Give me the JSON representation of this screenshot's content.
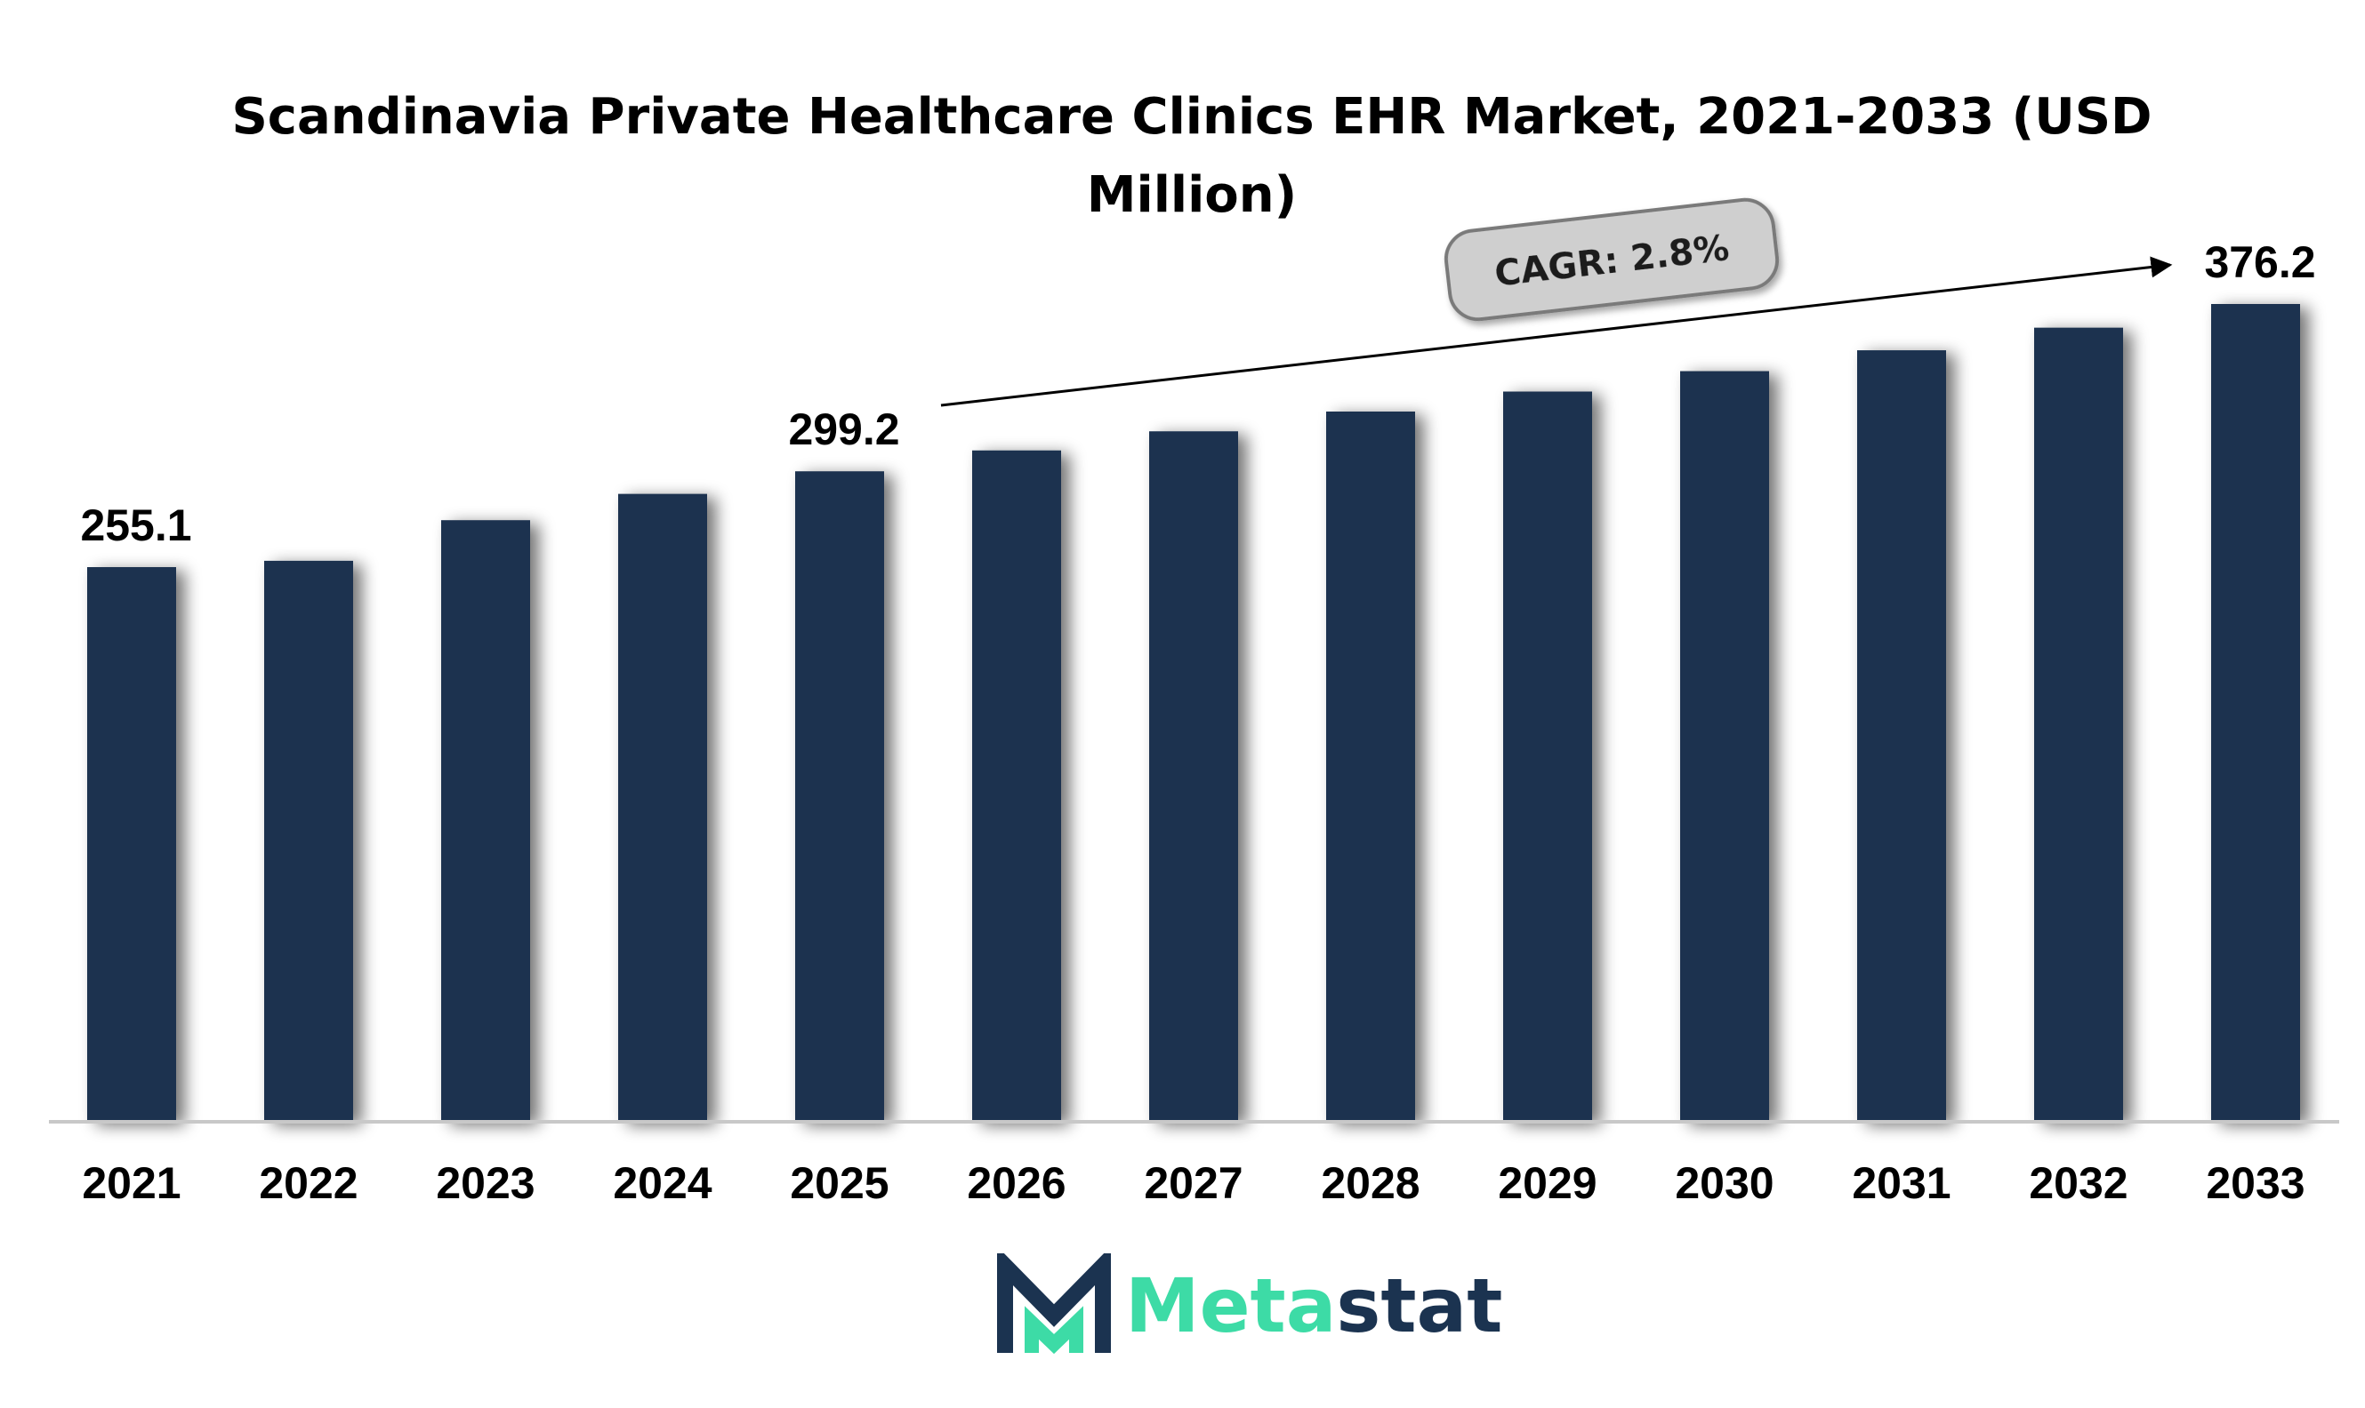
{
  "chart_data": {
    "type": "bar",
    "title": "Scandinavia Private Healthcare Clinics EHR Market, 2021-2033 (USD Million)",
    "categories": [
      "2021",
      "2022",
      "2023",
      "2024",
      "2025",
      "2026",
      "2027",
      "2028",
      "2029",
      "2030",
      "2031",
      "2032",
      "2033"
    ],
    "values": [
      255.1,
      258.0,
      276.7,
      288.8,
      299.2,
      308.8,
      317.6,
      326.7,
      335.9,
      345.3,
      354.9,
      365.3,
      376.2
    ],
    "data_labels": [
      {
        "category": "2021",
        "text": "255.1"
      },
      {
        "category": "2025",
        "text": "299.2"
      },
      {
        "category": "2033",
        "text": "376.2"
      }
    ],
    "annotation": "CAGR: 2.8%",
    "xlabel": "",
    "ylabel": "",
    "ylim": [
      0,
      390
    ],
    "grid": false,
    "legend": "none",
    "colors": {
      "bar": "#1b3350",
      "axis": "#c8c8c8",
      "cagr_box": "#cfcfcf",
      "cagr_border": "#7a7a7a"
    }
  },
  "brand": {
    "name_part1": "Meta",
    "name_part2": "stat",
    "icon": "m-logo-icon",
    "colors": {
      "dark": "#1b3350",
      "accent": "#3ddba6"
    }
  }
}
